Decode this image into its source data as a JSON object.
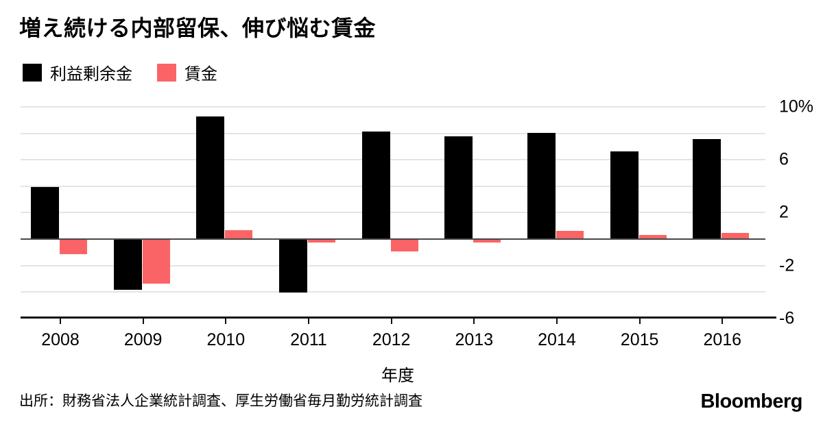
{
  "title": "増え続ける内部留保、伸び悩む賃金",
  "legend": [
    {
      "label": "利益剰余金",
      "color": "#000000"
    },
    {
      "label": "賃金",
      "color": "#fb6466"
    }
  ],
  "chart_data": {
    "type": "bar",
    "categories": [
      "2008",
      "2009",
      "2010",
      "2011",
      "2012",
      "2013",
      "2014",
      "2015",
      "2016"
    ],
    "series": [
      {
        "name": "利益剰余金",
        "color": "#000000",
        "values": [
          3.9,
          -3.8,
          9.2,
          -4.0,
          8.1,
          7.7,
          8.0,
          6.6,
          7.5
        ]
      },
      {
        "name": "賃金",
        "color": "#fb6466",
        "values": [
          -1.1,
          -3.3,
          0.6,
          -0.2,
          -0.9,
          -0.2,
          0.55,
          0.25,
          0.4
        ]
      }
    ],
    "title": "増え続ける内部留保、伸び悩む賃金",
    "xlabel": "年度",
    "ylabel": "",
    "ylim": [
      -6,
      10
    ],
    "y_tick_labels": [
      "10%",
      "6",
      "2",
      "-2",
      "-6"
    ],
    "y_tick_values": [
      10,
      6,
      2,
      -2,
      -6
    ],
    "gridline_values": [
      10,
      8,
      6,
      4,
      2,
      -2,
      -4
    ],
    "grid": true,
    "legend_position": "top-left",
    "colors": {
      "grid": "#e4e4e4",
      "zero_line": "#474747",
      "axis": "#111111"
    }
  },
  "footer": {
    "source": "出所：財務省法人企業統計調査、厚生労働省毎月勤労統計調査",
    "brand": "Bloomberg"
  }
}
